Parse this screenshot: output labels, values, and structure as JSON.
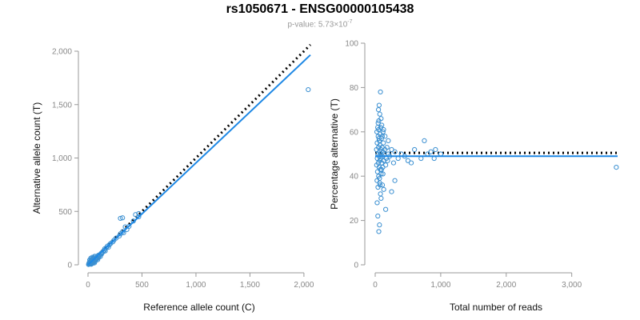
{
  "header": {
    "title": "rs1050671 - ENSG00000105438",
    "pvalue_label": "p-value: ",
    "pvalue_mantissa": "5.73",
    "pvalue_times": "×10",
    "pvalue_exponent": "-7"
  },
  "colors": {
    "points": "#3a8fd1",
    "fit": "#1e88e5",
    "ref_line": "#000000",
    "axis": "#999999"
  },
  "chart_data": [
    {
      "type": "scatter",
      "name": "left",
      "xlabel": "Reference allele count (C)",
      "ylabel": "Alternative allele count (T)",
      "xlim": [
        0,
        2060
      ],
      "ylim": [
        0,
        2000
      ],
      "xticks": [
        0,
        500,
        1000,
        1500,
        2000
      ],
      "xtick_labels": [
        "0",
        "500",
        "1,000",
        "1,500",
        "2,000"
      ],
      "yticks": [
        0,
        500,
        1000,
        1500,
        2000
      ],
      "ytick_labels": [
        "0",
        "500",
        "1,000",
        "1,500",
        "2,000"
      ],
      "fit_line": {
        "x": [
          0,
          2060
        ],
        "y": [
          0,
          1965
        ]
      },
      "reference_line": {
        "x": [
          0,
          2060
        ],
        "y": [
          0,
          2060
        ]
      },
      "points": [
        [
          8,
          10
        ],
        [
          10,
          18
        ],
        [
          12,
          6
        ],
        [
          15,
          25
        ],
        [
          18,
          14
        ],
        [
          20,
          30
        ],
        [
          22,
          8
        ],
        [
          25,
          40
        ],
        [
          28,
          22
        ],
        [
          30,
          12
        ],
        [
          32,
          35
        ],
        [
          35,
          50
        ],
        [
          38,
          20
        ],
        [
          40,
          28
        ],
        [
          42,
          45
        ],
        [
          45,
          15
        ],
        [
          48,
          33
        ],
        [
          50,
          55
        ],
        [
          52,
          24
        ],
        [
          55,
          42
        ],
        [
          58,
          38
        ],
        [
          60,
          18
        ],
        [
          62,
          50
        ],
        [
          65,
          30
        ],
        [
          70,
          60
        ],
        [
          72,
          44
        ],
        [
          75,
          52
        ],
        [
          80,
          65
        ],
        [
          85,
          58
        ],
        [
          90,
          48
        ],
        [
          95,
          75
        ],
        [
          100,
          70
        ],
        [
          105,
          85
        ],
        [
          110,
          95
        ],
        [
          115,
          78
        ],
        [
          120,
          105
        ],
        [
          125,
          100
        ],
        [
          130,
          115
        ],
        [
          140,
          120
        ],
        [
          150,
          135
        ],
        [
          155,
          150
        ],
        [
          160,
          130
        ],
        [
          170,
          160
        ],
        [
          180,
          175
        ],
        [
          190,
          165
        ],
        [
          200,
          190
        ],
        [
          210,
          200
        ],
        [
          230,
          215
        ],
        [
          240,
          230
        ],
        [
          260,
          250
        ],
        [
          290,
          270
        ],
        [
          300,
          290
        ],
        [
          320,
          310
        ],
        [
          330,
          300
        ],
        [
          345,
          355
        ],
        [
          360,
          330
        ],
        [
          380,
          360
        ],
        [
          420,
          410
        ],
        [
          470,
          450
        ],
        [
          30,
          5
        ],
        [
          5,
          3
        ],
        [
          14,
          20
        ],
        [
          24,
          10
        ],
        [
          36,
          28
        ],
        [
          46,
          60
        ],
        [
          56,
          70
        ],
        [
          66,
          48
        ],
        [
          78,
          55
        ],
        [
          88,
          82
        ],
        [
          98,
          90
        ],
        [
          16,
          45
        ],
        [
          26,
          62
        ],
        [
          40,
          70
        ],
        [
          62,
          80
        ],
        [
          300,
          435
        ],
        [
          320,
          440
        ],
        [
          440,
          470
        ],
        [
          470,
          480
        ],
        [
          2040,
          1640
        ]
      ]
    },
    {
      "type": "scatter",
      "name": "right",
      "xlabel": "Total number of reads",
      "ylabel": "Percentage alternative (T)",
      "xlim": [
        0,
        3700
      ],
      "ylim": [
        0,
        100
      ],
      "xticks": [
        0,
        1000,
        2000,
        3000
      ],
      "xtick_labels": [
        "0",
        "1,000",
        "2,000",
        "3,000"
      ],
      "yticks": [
        0,
        20,
        40,
        60,
        80,
        100
      ],
      "ytick_labels": [
        "0",
        "20",
        "40",
        "60",
        "80",
        "100"
      ],
      "fit_line": {
        "x": [
          0,
          3700
        ],
        "y": [
          49,
          49
        ]
      },
      "reference_line": {
        "x": [
          0,
          3700
        ],
        "y": [
          50.5,
          50.5
        ]
      },
      "points": [
        [
          20,
          52
        ],
        [
          22,
          45
        ],
        [
          25,
          60
        ],
        [
          28,
          38
        ],
        [
          30,
          55
        ],
        [
          32,
          48
        ],
        [
          35,
          42
        ],
        [
          38,
          62
        ],
        [
          40,
          50
        ],
        [
          42,
          35
        ],
        [
          45,
          58
        ],
        [
          48,
          46
        ],
        [
          50,
          53
        ],
        [
          52,
          40
        ],
        [
          55,
          65
        ],
        [
          58,
          49
        ],
        [
          60,
          44
        ],
        [
          62,
          56
        ],
        [
          65,
          51
        ],
        [
          68,
          37
        ],
        [
          70,
          47
        ],
        [
          72,
          54
        ],
        [
          75,
          59
        ],
        [
          78,
          43
        ],
        [
          80,
          50
        ],
        [
          85,
          48
        ],
        [
          88,
          52
        ],
        [
          90,
          41
        ],
        [
          95,
          57
        ],
        [
          100,
          46
        ],
        [
          105,
          53
        ],
        [
          110,
          49
        ],
        [
          115,
          44
        ],
        [
          120,
          51
        ],
        [
          125,
          55
        ],
        [
          130,
          47
        ],
        [
          140,
          50
        ],
        [
          150,
          52
        ],
        [
          160,
          45
        ],
        [
          170,
          48
        ],
        [
          180,
          53
        ],
        [
          190,
          47
        ],
        [
          200,
          50
        ],
        [
          220,
          49
        ],
        [
          250,
          52
        ],
        [
          280,
          46
        ],
        [
          300,
          51
        ],
        [
          350,
          48
        ],
        [
          400,
          50
        ],
        [
          450,
          49
        ],
        [
          500,
          47
        ],
        [
          550,
          46
        ],
        [
          600,
          52
        ],
        [
          700,
          48
        ],
        [
          750,
          56
        ],
        [
          800,
          50
        ],
        [
          850,
          51
        ],
        [
          900,
          48
        ],
        [
          920,
          52
        ],
        [
          1000,
          50
        ],
        [
          30,
          28
        ],
        [
          40,
          22
        ],
        [
          55,
          15
        ],
        [
          65,
          18
        ],
        [
          80,
          32
        ],
        [
          90,
          30
        ],
        [
          110,
          36
        ],
        [
          130,
          34
        ],
        [
          50,
          70
        ],
        [
          60,
          72
        ],
        [
          70,
          68
        ],
        [
          80,
          78
        ],
        [
          90,
          66
        ],
        [
          100,
          63
        ],
        [
          120,
          60
        ],
        [
          150,
          58
        ],
        [
          200,
          56
        ],
        [
          250,
          33
        ],
        [
          300,
          38
        ],
        [
          160,
          25
        ],
        [
          45,
          64
        ],
        [
          52,
          61
        ],
        [
          58,
          57
        ],
        [
          66,
          39
        ],
        [
          74,
          36
        ],
        [
          84,
          62
        ],
        [
          96,
          43
        ],
        [
          108,
          58
        ],
        [
          118,
          41
        ],
        [
          128,
          61
        ],
        [
          3680,
          44
        ]
      ]
    }
  ]
}
